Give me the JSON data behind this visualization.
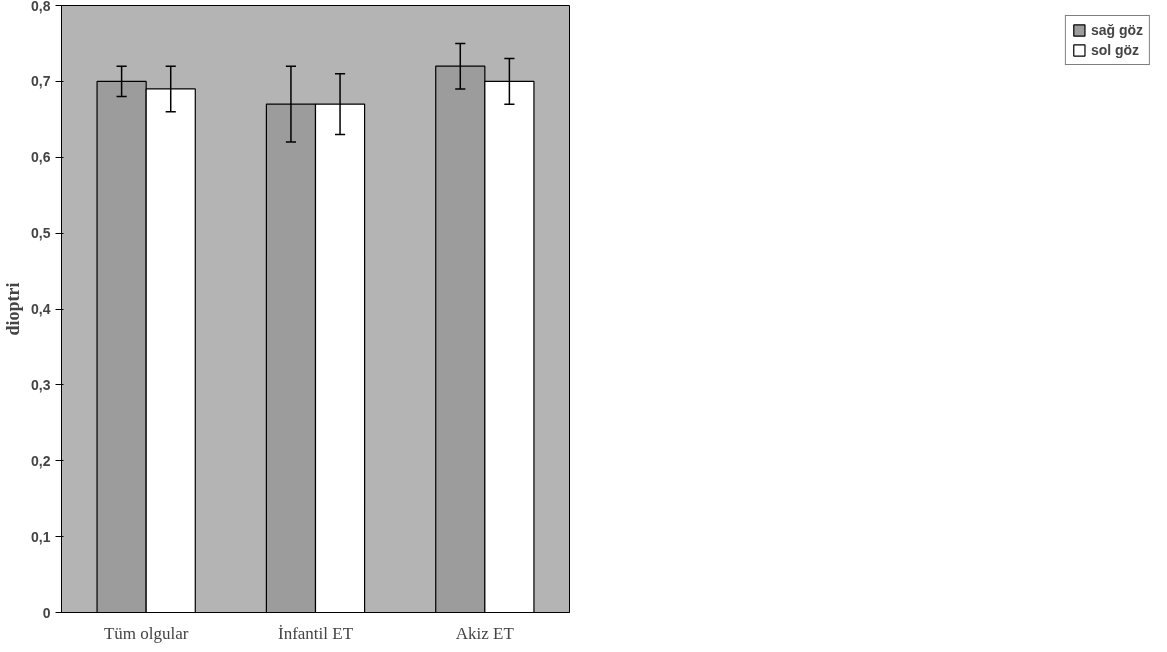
{
  "chart_data": {
    "type": "bar",
    "categories": [
      "Tüm olgular",
      "İnfantil ET",
      "Akiz ET"
    ],
    "series": [
      {
        "name": "sağ göz",
        "color": "#9c9c9c",
        "values": [
          0.7,
          0.67,
          0.72
        ],
        "errors": [
          0.02,
          0.05,
          0.03
        ]
      },
      {
        "name": "sol göz",
        "color": "#ffffff",
        "values": [
          0.69,
          0.67,
          0.7
        ],
        "errors": [
          0.03,
          0.04,
          0.03
        ]
      }
    ],
    "ylabel": "dioptri",
    "ylim": [
      0,
      0.8
    ],
    "yticks": [
      0,
      {
        "value": 0.1,
        "label": "0,1"
      },
      {
        "value": 0.2,
        "label": "0,2"
      },
      {
        "value": 0.3,
        "label": "0,3"
      },
      {
        "value": 0.4,
        "label": "0,4"
      },
      {
        "value": 0.5,
        "label": "0,5"
      },
      {
        "value": 0.6,
        "label": "0,6"
      },
      {
        "value": 0.7,
        "label": "0,7"
      },
      {
        "value": 0.8,
        "label": "0,8"
      }
    ],
    "grid": false,
    "legend": "right"
  }
}
